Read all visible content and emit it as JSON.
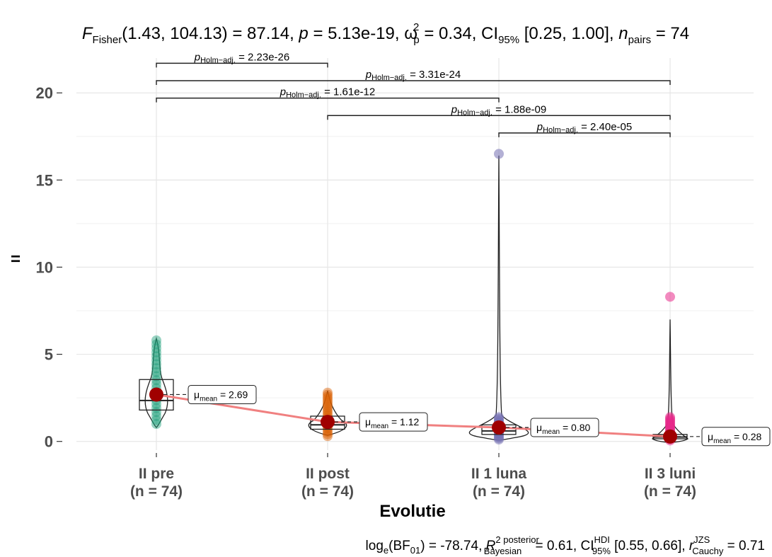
{
  "chart_data": {
    "type": "violin-box",
    "title": {
      "prefix": "F",
      "prefix_sub": "Fisher",
      "args": "(1.43, 104.13) = 87.14, ",
      "p_label": "p",
      "p_value": " = 5.13e-19, ",
      "omega_label": "ω",
      "omega_sup": "2",
      "omega_sub": "p",
      "omega_value": " = 0.34, CI",
      "ci_sub": "95%",
      "ci_value": " [0.25, 1.00], ",
      "n_label": "n",
      "n_sub": "pairs",
      "n_value": " = 74"
    },
    "subtitle": {
      "log": "log",
      "log_sub": "e",
      "bf": "(BF",
      "bf_sub": "01",
      "bf_value": ") = -78.74, ",
      "r2": "R",
      "r2_sup": "2 posterior",
      "r2_sub": "Bayesian",
      "r2_value": " = 0.61, CI",
      "ci_sup": "HDI",
      "ci_sub": "95%",
      "ci_value": " [0.55, 0.66], ",
      "r": "r",
      "r_sup": "JZS",
      "r_sub": "Cauchy",
      "r_value": " = 0.71"
    },
    "xlabel": "Evolutie",
    "ylabel": "=",
    "ylim": [
      -0.5,
      22
    ],
    "yticks": [
      0,
      5,
      10,
      15,
      20
    ],
    "grid": true,
    "categories": [
      {
        "name": "II pre",
        "n": "(n = 74)",
        "color": "#1b9e77",
        "mean": 2.69,
        "mean_label": "2.69",
        "q1": 1.8,
        "median": 2.35,
        "q3": 3.55,
        "pmin": 1.0,
        "pmax": 5.8
      },
      {
        "name": "II post",
        "n": "(n = 74)",
        "color": "#d95f02",
        "mean": 1.12,
        "mean_label": "1.12",
        "q1": 0.7,
        "median": 0.95,
        "q3": 1.45,
        "pmin": 0.3,
        "pmax": 2.8
      },
      {
        "name": "II 1 luna",
        "n": "(n = 74)",
        "color": "#7570b3",
        "mean": 0.8,
        "mean_label": "0.80",
        "q1": 0.4,
        "median": 0.6,
        "q3": 0.95,
        "pmin": 0.1,
        "pmax": 16.5
      },
      {
        "name": "II 3 luni",
        "n": "(n = 74)",
        "color": "#e7298a",
        "mean": 0.28,
        "mean_label": "0.28",
        "q1": 0.15,
        "median": 0.25,
        "q3": 0.4,
        "pmin": 0.05,
        "pmax": 8.3
      }
    ],
    "mean_label_prefix": "μ",
    "mean_label_sub": "mean",
    "mean_label_eq": " = ",
    "comparisons": [
      {
        "from": 0,
        "to": 1,
        "y": 21.7,
        "p_label": "p",
        "p_sub": "Holm−adj.",
        "value": " = 2.23e-26"
      },
      {
        "from": 0,
        "to": 3,
        "y": 20.7,
        "p_label": "p",
        "p_sub": "Holm−adj.",
        "value": " = 3.31e-24"
      },
      {
        "from": 0,
        "to": 2,
        "y": 19.7,
        "p_label": "p",
        "p_sub": "Holm−adj.",
        "value": " = 1.61e-12"
      },
      {
        "from": 1,
        "to": 3,
        "y": 18.7,
        "p_label": "p",
        "p_sub": "Holm−adj.",
        "value": " = 1.88e-09"
      },
      {
        "from": 2,
        "to": 3,
        "y": 17.7,
        "p_label": "p",
        "p_sub": "Holm−adj.",
        "value": " = 2.40e-05"
      }
    ],
    "mean_line_color": "#f08080",
    "mean_point_color": "#a00000"
  }
}
